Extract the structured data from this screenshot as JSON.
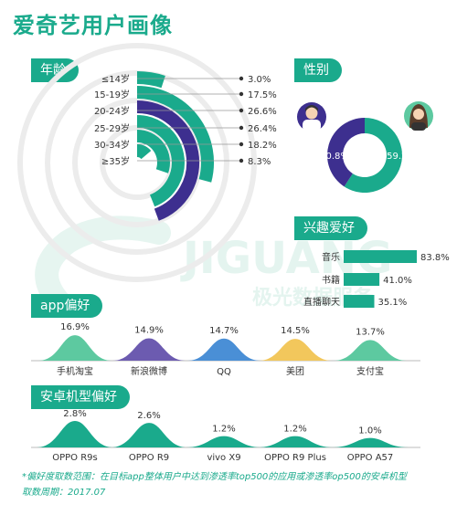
{
  "title": "爱奇艺用户画像",
  "sections": {
    "age": "年龄",
    "gender": "性别",
    "interest": "兴趣爱好",
    "app": "app偏好",
    "phone": "安卓机型偏好"
  },
  "watermark": {
    "main": "JIGUANG",
    "sub": "极光数据服务"
  },
  "footnote": {
    "line1": "*偏好度取数范围：在目标app整体用户中达到渗透率top500的应用或渗透率op500的安卓机型",
    "line2": "取数周期：2017.07"
  },
  "colors": {
    "teal": "#1aaa8c",
    "purple": "#3d2f8f",
    "blue": "#4a8fd6",
    "yellow": "#f2c75c",
    "green": "#5dc9a0",
    "ring_bg": "#eeeeee"
  },
  "chart_data": [
    {
      "type": "bar",
      "subtype": "radial",
      "title": "年龄",
      "categories": [
        "≤14岁",
        "15-19岁",
        "20-24岁",
        "25-29岁",
        "30-34岁",
        "≥35岁"
      ],
      "values": [
        3.0,
        17.5,
        26.6,
        26.4,
        18.2,
        8.3
      ],
      "labels": [
        "3.0%",
        "17.5%",
        "26.6%",
        "26.4%",
        "18.2%",
        "8.3%"
      ],
      "colors": [
        "#1aaa8c",
        "#1aaa8c",
        "#3d2f8f",
        "#1aaa8c",
        "#1aaa8c",
        "#1aaa8c"
      ],
      "unit": "%"
    },
    {
      "type": "pie",
      "subtype": "donut",
      "title": "性别",
      "categories": [
        "男",
        "女"
      ],
      "values": [
        40.8,
        59.2
      ],
      "labels": [
        "40.8%",
        "59.2%"
      ],
      "colors": [
        "#3d2f8f",
        "#1aaa8c"
      ],
      "icons": [
        "male-avatar-icon",
        "female-avatar-icon"
      ]
    },
    {
      "type": "bar",
      "orientation": "horizontal",
      "title": "兴趣爱好",
      "categories": [
        "音乐",
        "书籍",
        "直播聊天"
      ],
      "values": [
        83.8,
        41.0,
        35.1
      ],
      "labels": [
        "83.8%",
        "41.0%",
        "35.1%"
      ],
      "color": "#1aaa8c"
    },
    {
      "type": "area",
      "subtype": "bell",
      "title": "app偏好",
      "categories": [
        "手机淘宝",
        "新浪微博",
        "QQ",
        "美团",
        "支付宝"
      ],
      "values": [
        16.9,
        14.9,
        14.7,
        14.5,
        13.7
      ],
      "labels": [
        "16.9%",
        "14.9%",
        "14.7%",
        "14.5%",
        "13.7%"
      ],
      "colors": [
        "#5dc9a0",
        "#6c5bb0",
        "#4a8fd6",
        "#f2c75c",
        "#5dc9a0"
      ]
    },
    {
      "type": "area",
      "subtype": "bell",
      "title": "安卓机型偏好",
      "categories": [
        "OPPO R9s",
        "OPPO R9",
        "vivo X9",
        "OPPO R9 Plus",
        "OPPO A57"
      ],
      "values": [
        2.8,
        2.6,
        1.2,
        1.2,
        1.0
      ],
      "labels": [
        "2.8%",
        "2.6%",
        "1.2%",
        "1.2%",
        "1.0%"
      ],
      "color": "#1aaa8c"
    }
  ]
}
